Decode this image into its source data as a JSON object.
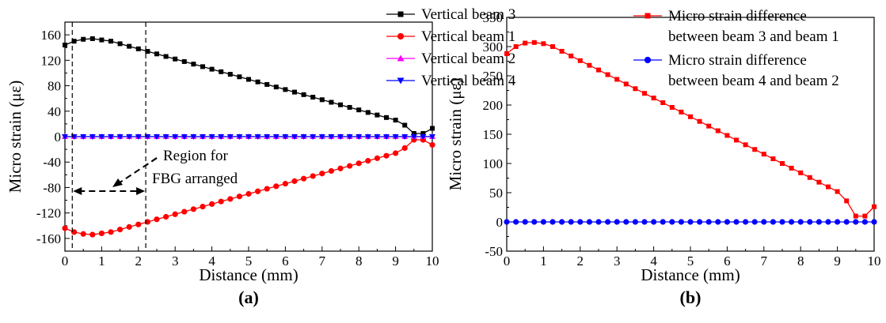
{
  "chart_data": [
    {
      "type": "line",
      "panel_label": "(a)",
      "xlabel": "Distance (mm)",
      "ylabel": "Micro strain (με)",
      "xlim": [
        0,
        10
      ],
      "ylim": [
        -180,
        180
      ],
      "xticks": [
        0,
        1,
        2,
        3,
        4,
        5,
        6,
        7,
        8,
        9,
        10
      ],
      "yticks": [
        -160,
        -120,
        -80,
        -40,
        0,
        40,
        80,
        120,
        160
      ],
      "grid": false,
      "legend_position": "top-right",
      "x": [
        0,
        0.25,
        0.5,
        0.75,
        1,
        1.25,
        1.5,
        1.75,
        2,
        2.25,
        2.5,
        2.75,
        3,
        3.25,
        3.5,
        3.75,
        4,
        4.25,
        4.5,
        4.75,
        5,
        5.25,
        5.5,
        5.75,
        6,
        6.25,
        6.5,
        6.75,
        7,
        7.25,
        7.5,
        7.75,
        8,
        8.25,
        8.5,
        8.75,
        9,
        9.25,
        9.5,
        9.75,
        10
      ],
      "series": [
        {
          "name": "Vertical beam 3",
          "color": "#000000",
          "marker": "square",
          "values": [
            144,
            150,
            153,
            154,
            152,
            150,
            146,
            142,
            138,
            134,
            130,
            126,
            122,
            118,
            114,
            110,
            106,
            102,
            98,
            94,
            90,
            86,
            82,
            78,
            74,
            70,
            66,
            62,
            58,
            54,
            50,
            46,
            42,
            38,
            34,
            30,
            26,
            18,
            5,
            5,
            13
          ]
        },
        {
          "name": "Vertical beam 1",
          "color": "#ff0000",
          "marker": "circle",
          "values": [
            -144,
            -150,
            -153,
            -154,
            -152,
            -150,
            -146,
            -142,
            -138,
            -134,
            -130,
            -126,
            -122,
            -118,
            -114,
            -110,
            -106,
            -102,
            -98,
            -94,
            -90,
            -86,
            -82,
            -78,
            -74,
            -70,
            -66,
            -62,
            -58,
            -54,
            -50,
            -46,
            -42,
            -38,
            -34,
            -30,
            -26,
            -18,
            -5,
            -5,
            -13
          ]
        },
        {
          "name": "Vertical beam 2",
          "color": "#ff00ff",
          "marker": "triangle-up",
          "values": [
            0,
            0,
            0,
            0,
            0,
            0,
            0,
            0,
            0,
            0,
            0,
            0,
            0,
            0,
            0,
            0,
            0,
            0,
            0,
            0,
            0,
            0,
            0,
            0,
            0,
            0,
            0,
            0,
            0,
            0,
            0,
            0,
            0,
            0,
            0,
            0,
            0,
            0,
            0,
            0,
            0
          ]
        },
        {
          "name": "Vertical beam 4",
          "color": "#0000ff",
          "marker": "triangle-down",
          "values": [
            0,
            0,
            0,
            0,
            0,
            0,
            0,
            0,
            0,
            0,
            0,
            0,
            0,
            0,
            0,
            0,
            0,
            0,
            0,
            0,
            0,
            0,
            0,
            0,
            0,
            0,
            0,
            0,
            0,
            0,
            0,
            0,
            0,
            0,
            0,
            0,
            0,
            0,
            0,
            0,
            0
          ]
        }
      ],
      "annotation": {
        "text_lines": [
          "Region for",
          "FBG arranged"
        ],
        "region_x": [
          0.2,
          2.2
        ]
      }
    },
    {
      "type": "line",
      "panel_label": "(b)",
      "xlabel": "Distance (mm)",
      "ylabel": "Micro strain (με)",
      "xlim": [
        0,
        10
      ],
      "ylim": [
        -50,
        350
      ],
      "xticks": [
        0,
        1,
        2,
        3,
        4,
        5,
        6,
        7,
        8,
        9,
        10
      ],
      "yticks": [
        -50,
        0,
        50,
        100,
        150,
        200,
        250,
        300,
        350
      ],
      "grid": false,
      "legend_position": "top-right",
      "x": [
        0,
        0.25,
        0.5,
        0.75,
        1,
        1.25,
        1.5,
        1.75,
        2,
        2.25,
        2.5,
        2.75,
        3,
        3.25,
        3.5,
        3.75,
        4,
        4.25,
        4.5,
        4.75,
        5,
        5.25,
        5.5,
        5.75,
        6,
        6.25,
        6.5,
        6.75,
        7,
        7.25,
        7.5,
        7.75,
        8,
        8.25,
        8.5,
        8.75,
        9,
        9.25,
        9.5,
        9.75,
        10
      ],
      "series": [
        {
          "name_lines": [
            "Micro strain difference",
            "between beam 3 and beam 1"
          ],
          "color": "#ff0000",
          "marker": "square",
          "values": [
            288,
            300,
            306,
            307,
            305,
            300,
            292,
            284,
            276,
            268,
            260,
            252,
            244,
            236,
            228,
            220,
            212,
            204,
            196,
            188,
            180,
            172,
            164,
            156,
            148,
            140,
            132,
            124,
            116,
            108,
            100,
            92,
            84,
            76,
            68,
            60,
            52,
            36,
            10,
            10,
            26
          ]
        },
        {
          "name_lines": [
            "Micro strain difference",
            "between beam 4 and beam 2"
          ],
          "color": "#0000ff",
          "marker": "circle",
          "values": [
            0,
            0,
            0,
            0,
            0,
            0,
            0,
            0,
            0,
            0,
            0,
            0,
            0,
            0,
            0,
            0,
            0,
            0,
            0,
            0,
            0,
            0,
            0,
            0,
            0,
            0,
            0,
            0,
            0,
            0,
            0,
            0,
            0,
            0,
            0,
            0,
            0,
            0,
            0,
            0,
            0
          ]
        }
      ]
    }
  ]
}
